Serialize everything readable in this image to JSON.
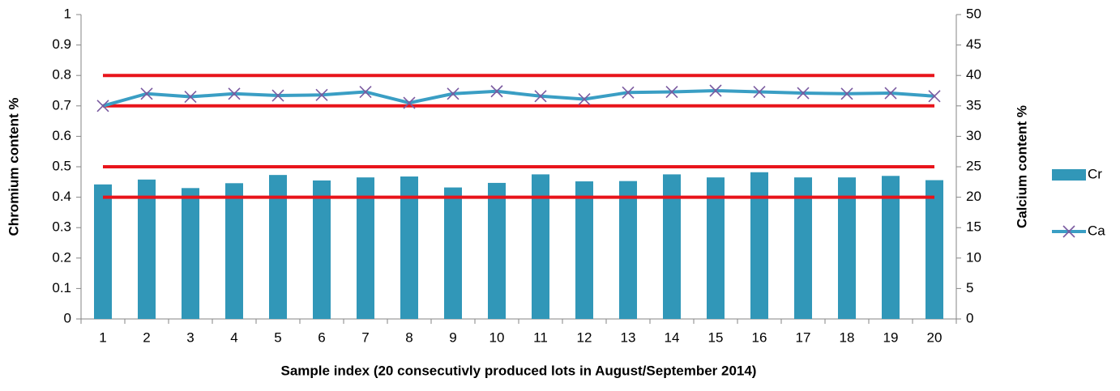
{
  "chart_data": {
    "type": "bar-line",
    "x_label": "Sample index (20 consecutivly produced lots in August/September 2014)",
    "y_label": "Chromium content %",
    "y2_label": "Calcium content %",
    "categories": [
      "1",
      "2",
      "3",
      "4",
      "5",
      "6",
      "7",
      "8",
      "9",
      "10",
      "11",
      "12",
      "13",
      "14",
      "15",
      "16",
      "17",
      "18",
      "19",
      "20"
    ],
    "series": [
      {
        "name": "Cr",
        "type": "bar",
        "axis": "y",
        "color": "#3197b8",
        "values": [
          0.442,
          0.458,
          0.43,
          0.446,
          0.473,
          0.455,
          0.465,
          0.468,
          0.432,
          0.447,
          0.475,
          0.452,
          0.453,
          0.475,
          0.465,
          0.482,
          0.465,
          0.465,
          0.47,
          0.456
        ]
      },
      {
        "name": "Ca",
        "type": "line",
        "axis": "y2",
        "color": "#3a9ec4",
        "marker_color": "#7a5aa0",
        "values": [
          35,
          37,
          36.5,
          37,
          36.7,
          36.8,
          37.3,
          35.5,
          37,
          37.4,
          36.6,
          36.1,
          37.2,
          37.3,
          37.5,
          37.3,
          37.1,
          37,
          37.1,
          36.6
        ]
      }
    ],
    "reference_lines": [
      {
        "axis": "y",
        "value": 0.4,
        "color": "#e8141b"
      },
      {
        "axis": "y",
        "value": 0.5,
        "color": "#e8141b"
      },
      {
        "axis": "y2",
        "value": 35,
        "color": "#e8141b"
      },
      {
        "axis": "y2",
        "value": 40,
        "color": "#e8141b"
      }
    ],
    "ylim": [
      0,
      1
    ],
    "yticks": [
      0,
      0.1,
      0.2,
      0.3,
      0.4,
      0.5,
      0.6,
      0.7,
      0.8,
      0.9,
      1
    ],
    "y2lim": [
      0,
      50
    ],
    "y2ticks": [
      0,
      5,
      10,
      15,
      20,
      25,
      30,
      35,
      40,
      45,
      50
    ],
    "legend": "right"
  }
}
